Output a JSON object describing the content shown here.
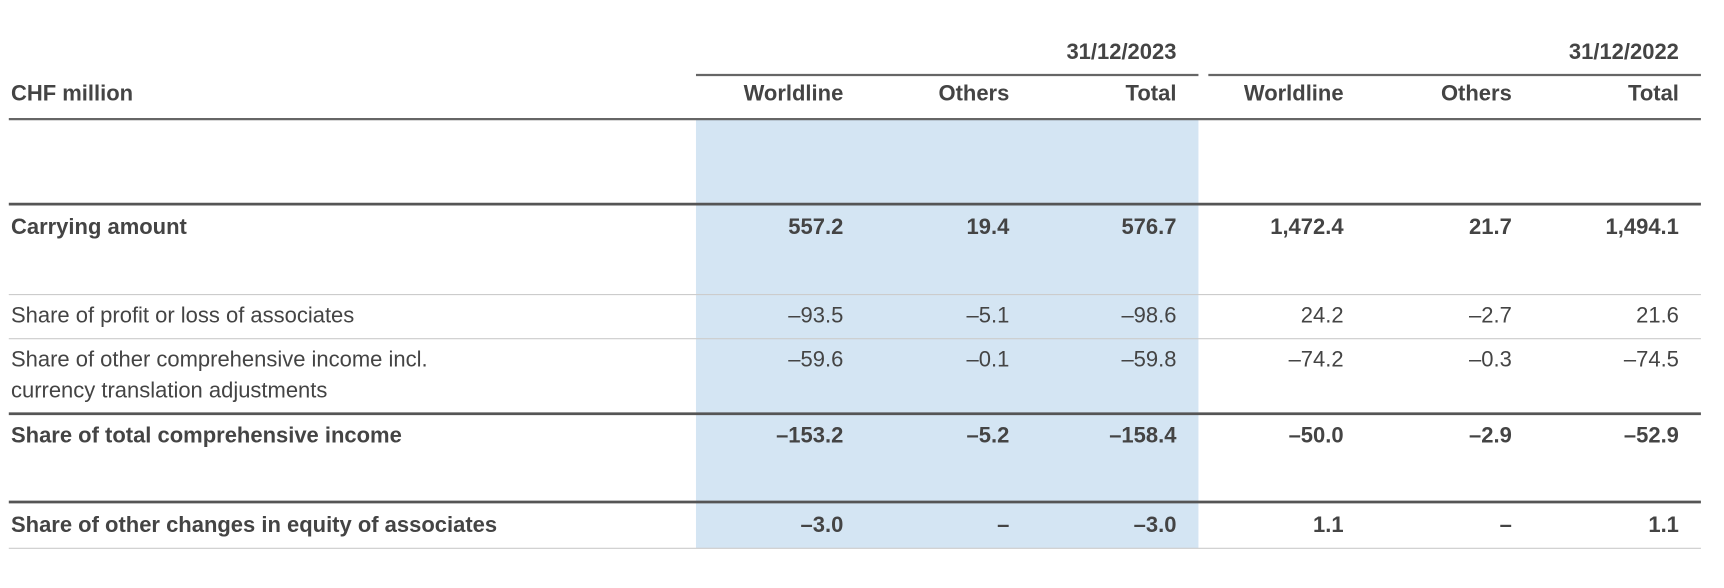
{
  "table": {
    "unit_label": "CHF million",
    "periods": [
      "31/12/2023",
      "31/12/2022"
    ],
    "columns": [
      "Worldline",
      "Others",
      "Total",
      "Worldline",
      "Others",
      "Total"
    ],
    "rows": [
      {
        "label": "Carrying amount",
        "bold": true,
        "values": [
          "557.2",
          "19.4",
          "576.7",
          "1,472.4",
          "21.7",
          "1,494.1"
        ]
      },
      {
        "label": "Share of profit or loss of associates",
        "bold": false,
        "values": [
          "–93.5",
          "–5.1",
          "–98.6",
          "24.2",
          "–2.7",
          "21.6"
        ]
      },
      {
        "label": [
          "Share of other comprehensive income incl.",
          "currency translation adjustments"
        ],
        "bold": false,
        "values": [
          "–59.6",
          "–0.1",
          "–59.8",
          "–74.2",
          "–0.3",
          "–74.5"
        ]
      },
      {
        "label": "Share of total comprehensive income",
        "bold": true,
        "values": [
          "–153.2",
          "–5.2",
          "–158.4",
          "–50.0",
          "–2.9",
          "–52.9"
        ]
      },
      {
        "label": "Share of other changes in equity of associates",
        "bold": true,
        "values": [
          "–3.0",
          "–",
          "–3.0",
          "1.1",
          "–",
          "1.1"
        ]
      }
    ]
  }
}
